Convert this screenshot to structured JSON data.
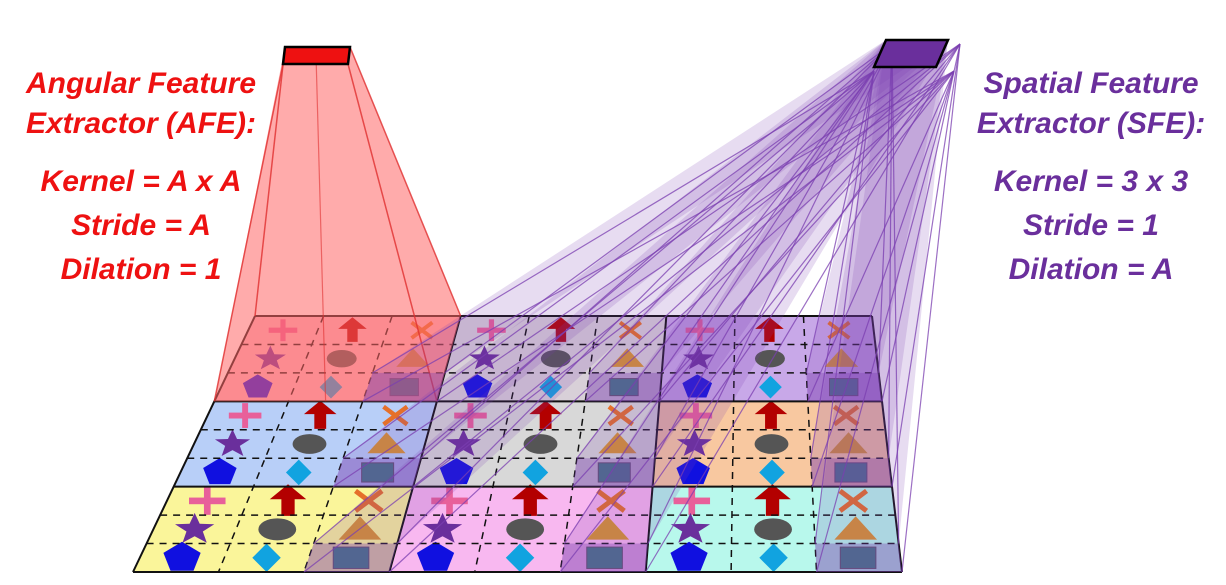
{
  "colors": {
    "afe": "#ee1111",
    "sfe": "#6a2f9c",
    "afe_beam": "#ff6666",
    "sfe_beam": "#7b3fb0",
    "cross": "#e8609a",
    "arrow": "#b30000",
    "x_mark": "#e5702a",
    "star": "#6a2f9c",
    "ellipse": "#555555",
    "triangle": "#d89430",
    "pentagon": "#1010e0",
    "diamond": "#11a3e0",
    "rect": "#2f8a78"
  },
  "afe": {
    "title_line1": "Angular Feature",
    "title_line2": "Extractor (AFE):",
    "kernel": "Kernel = A x A",
    "stride": "Stride = A",
    "dilation": "Dilation = 1"
  },
  "sfe": {
    "title_line1": "Spatial Feature",
    "title_line2": "Extractor (SFE):",
    "kernel": "Kernel = 3 x 3",
    "stride": "Stride = 1",
    "dilation": "Dilation = A"
  },
  "grid": {
    "macro_rows": 3,
    "macro_cols": 3,
    "sub": 3,
    "macro_fills": [
      [
        "#f9b8c4",
        "#d8d0d8",
        "#c8a8e8"
      ],
      [
        "#b8cff8",
        "#d8d8d8",
        "#f8c8a0"
      ],
      [
        "#faf59a",
        "#f8b8f0",
        "#b8f8ec"
      ]
    ],
    "sub_icons": [
      [
        "cross",
        "arrow",
        "x_mark"
      ],
      [
        "star",
        "ellipse",
        "triangle"
      ],
      [
        "pentagon",
        "diamond",
        "rect"
      ]
    ]
  }
}
